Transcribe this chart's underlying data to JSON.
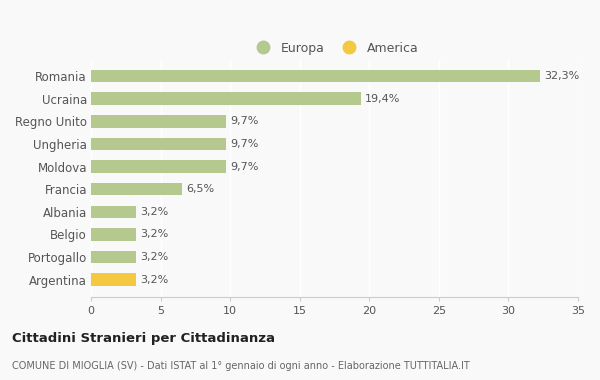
{
  "categories": [
    "Romania",
    "Ucraina",
    "Regno Unito",
    "Ungheria",
    "Moldova",
    "Francia",
    "Albania",
    "Belgio",
    "Portogallo",
    "Argentina"
  ],
  "values": [
    32.3,
    19.4,
    9.7,
    9.7,
    9.7,
    6.5,
    3.2,
    3.2,
    3.2,
    3.2
  ],
  "labels": [
    "32,3%",
    "19,4%",
    "9,7%",
    "9,7%",
    "9,7%",
    "6,5%",
    "3,2%",
    "3,2%",
    "3,2%",
    "3,2%"
  ],
  "colors": [
    "#b5c98e",
    "#b5c98e",
    "#b5c98e",
    "#b5c98e",
    "#b5c98e",
    "#b5c98e",
    "#b5c98e",
    "#b5c98e",
    "#b5c98e",
    "#f5c842"
  ],
  "europa_color": "#b5c98e",
  "america_color": "#f5c842",
  "background_color": "#f9f9f9",
  "xlim": [
    0,
    35
  ],
  "xticks": [
    0,
    5,
    10,
    15,
    20,
    25,
    30,
    35
  ],
  "title": "Cittadini Stranieri per Cittadinanza",
  "subtitle": "COMUNE DI MIOGLIA (SV) - Dati ISTAT al 1° gennaio di ogni anno - Elaborazione TUTTITALIA.IT",
  "legend_europa": "Europa",
  "legend_america": "America",
  "bar_height": 0.55,
  "label_fontsize": 8,
  "ytick_fontsize": 8.5,
  "xtick_fontsize": 8
}
